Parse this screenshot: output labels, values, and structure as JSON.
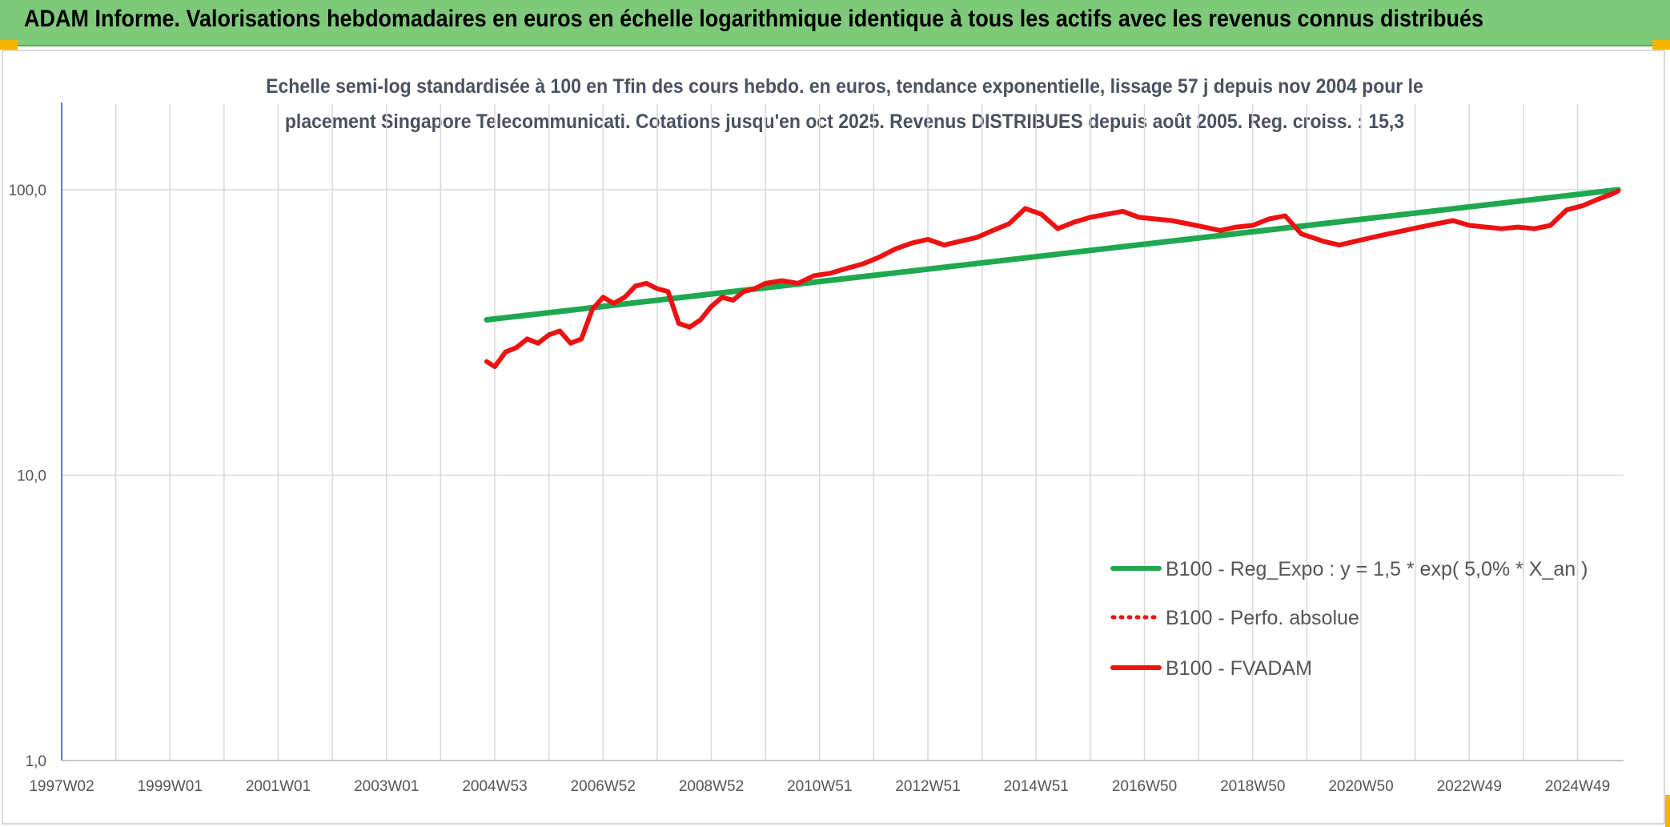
{
  "header": {
    "title": "ADAM Informe. Valorisations hebdomadaires en euros en échelle logarithmique identique à tous les actifs avec les revenus connus distribués"
  },
  "chart_data": {
    "type": "line",
    "title_lines": [
      "Echelle semi-log standardisée à 100 en Tfin des cours hebdo. en euros, tendance exponentielle, lissage 57 j depuis nov 2004 pour le",
      "placement Singapore Telecommunicati. Cotations jusqu'en oct 2025. Revenus DISTRIBUES depuis août 2005. Reg. croiss. : 15,3"
    ],
    "y_scale": "log",
    "ylim": [
      1,
      200
    ],
    "y_ticks": [
      {
        "value": 100,
        "label": "100,0"
      },
      {
        "value": 10,
        "label": "10,0"
      },
      {
        "value": 1,
        "label": "1,0"
      }
    ],
    "xlim": [
      1997.0,
      2025.85
    ],
    "x_ticks": [
      {
        "value": 1997.0,
        "label": "1997W02"
      },
      {
        "value": 1999.0,
        "label": "1999W01"
      },
      {
        "value": 2001.0,
        "label": "2001W01"
      },
      {
        "value": 2003.0,
        "label": "2003W01"
      },
      {
        "value": 2005.0,
        "label": "2004W53"
      },
      {
        "value": 2007.0,
        "label": "2006W52"
      },
      {
        "value": 2009.0,
        "label": "2008W52"
      },
      {
        "value": 2011.0,
        "label": "2010W51"
      },
      {
        "value": 2013.0,
        "label": "2012W51"
      },
      {
        "value": 2015.0,
        "label": "2014W51"
      },
      {
        "value": 2017.0,
        "label": "2016W50"
      },
      {
        "value": 2019.0,
        "label": "2018W50"
      },
      {
        "value": 2021.0,
        "label": "2020W50"
      },
      {
        "value": 2023.0,
        "label": "2022W49"
      },
      {
        "value": 2025.0,
        "label": "2024W49"
      }
    ],
    "grid": true,
    "legend_position": "lower-right",
    "series": [
      {
        "name": "B100 - Reg_Expo : y = 1,5 * exp( 5,0% *  X_an )",
        "color": "#1fa84f",
        "style": "solid",
        "x": [
          2004.85,
          2025.75
        ],
        "y": [
          35,
          100
        ]
      },
      {
        "name": "B100 - Perfo. absolue",
        "color": "#ee1111",
        "style": "dotted",
        "x": [],
        "y": []
      },
      {
        "name": "B100 - FVADAM",
        "color": "#ee1111",
        "style": "solid",
        "x": [
          2004.85,
          2005.0,
          2005.2,
          2005.4,
          2005.6,
          2005.8,
          2006.0,
          2006.2,
          2006.4,
          2006.6,
          2006.8,
          2007.0,
          2007.2,
          2007.4,
          2007.6,
          2007.8,
          2008.0,
          2008.2,
          2008.4,
          2008.6,
          2008.8,
          2009.0,
          2009.2,
          2009.4,
          2009.6,
          2009.8,
          2010.0,
          2010.3,
          2010.6,
          2010.9,
          2011.2,
          2011.5,
          2011.8,
          2012.1,
          2012.4,
          2012.7,
          2013.0,
          2013.3,
          2013.6,
          2013.9,
          2014.2,
          2014.5,
          2014.8,
          2015.1,
          2015.4,
          2015.7,
          2016.0,
          2016.3,
          2016.6,
          2016.9,
          2017.2,
          2017.5,
          2017.8,
          2018.1,
          2018.4,
          2018.7,
          2019.0,
          2019.3,
          2019.6,
          2019.9,
          2020.1,
          2020.3,
          2020.6,
          2020.9,
          2021.2,
          2021.5,
          2021.8,
          2022.1,
          2022.4,
          2022.7,
          2023.0,
          2023.3,
          2023.6,
          2023.9,
          2024.2,
          2024.5,
          2024.8,
          2025.1,
          2025.4,
          2025.6,
          2025.75
        ],
        "y": [
          25,
          24,
          27,
          28,
          30,
          29,
          31,
          32,
          29,
          30,
          38,
          42,
          40,
          42,
          46,
          47,
          45,
          44,
          34,
          33,
          35,
          39,
          42,
          41,
          44,
          45,
          47,
          48,
          47,
          50,
          51,
          53,
          55,
          58,
          62,
          65,
          67,
          64,
          66,
          68,
          72,
          76,
          86,
          82,
          73,
          77,
          80,
          82,
          84,
          80,
          79,
          78,
          76,
          74,
          72,
          74,
          75,
          79,
          81,
          70,
          68,
          66,
          64,
          66,
          68,
          70,
          72,
          74,
          76,
          78,
          75,
          74,
          73,
          74,
          73,
          75,
          85,
          88,
          93,
          96,
          99
        ]
      }
    ]
  }
}
